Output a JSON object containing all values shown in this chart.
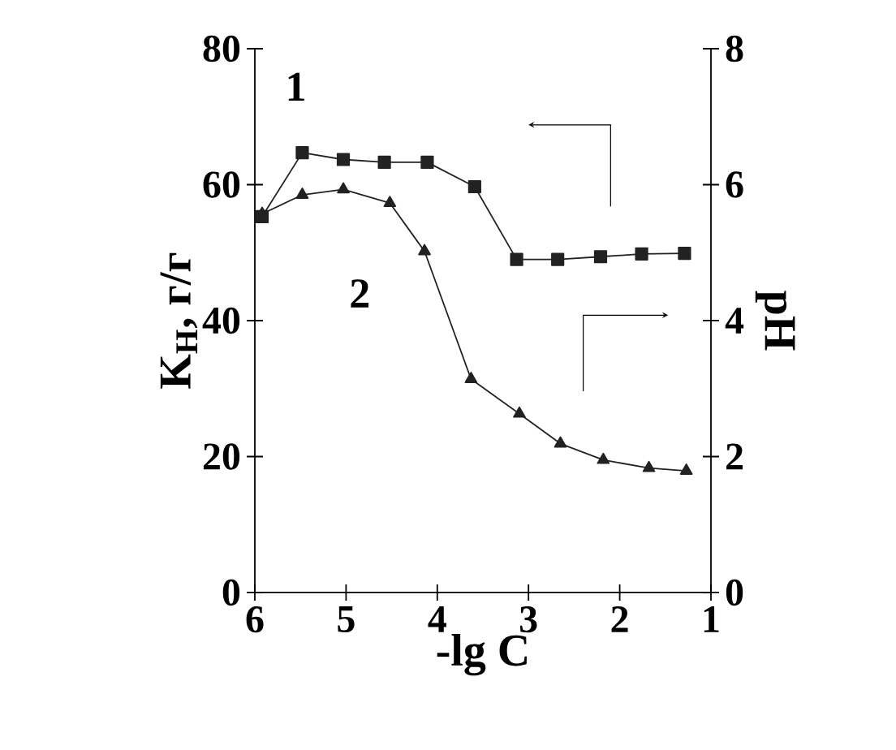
{
  "chart_data": {
    "type": "line",
    "xlabel": "-lg C",
    "ylabel": "K$_{H}$, г/г",
    "y2label": "pH",
    "xlim": [
      6,
      1
    ],
    "xticks": [
      6,
      5,
      4,
      3,
      2,
      1
    ],
    "ylim": [
      0,
      80
    ],
    "yticks": [
      0,
      20,
      40,
      60,
      80
    ],
    "y2lim": [
      0,
      8
    ],
    "y2ticks": [
      0,
      2,
      4,
      6,
      8
    ],
    "grid": false,
    "line_style": "solid",
    "annotations": [
      "1",
      "2"
    ],
    "series": [
      {
        "color": "#222222",
        "marker": "square",
        "x": [
          5.92,
          5.48,
          5.03,
          4.58,
          4.11,
          3.59,
          3.13,
          2.68,
          2.21,
          1.76,
          1.29
        ],
        "values": [
          55.3,
          64.7,
          63.7,
          63.3,
          63.3,
          59.7,
          49,
          49,
          49.4,
          49.8,
          49.9
        ]
      },
      {
        "color": "#222222",
        "marker": "triangle",
        "axis": "y2",
        "x": [
          5.92,
          5.48,
          5.03,
          4.52,
          4.14,
          3.63,
          3.1,
          2.65,
          2.18,
          1.68,
          1.27
        ],
        "values": [
          5.57,
          5.85,
          5.93,
          5.73,
          5.02,
          3.14,
          2.63,
          2.19,
          1.95,
          1.83,
          1.79
        ]
      }
    ]
  }
}
